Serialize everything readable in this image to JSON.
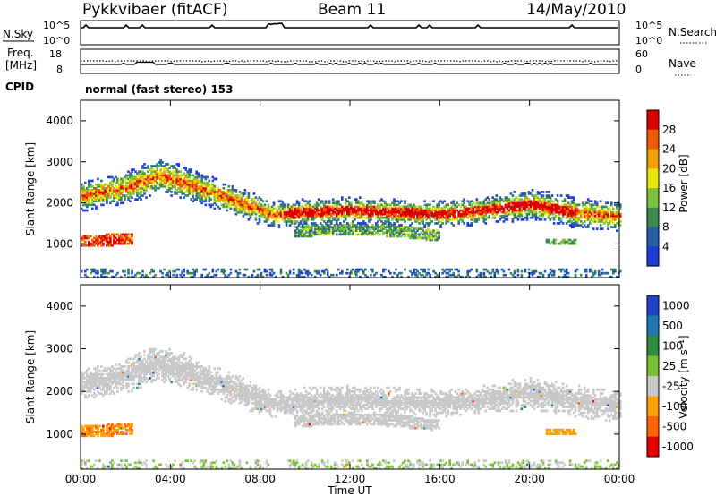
{
  "header": {
    "radar": "Pykkvibaer (fitACF)",
    "beam": "Beam 11",
    "date": "14/May/2010"
  },
  "aux": {
    "nsky_label": "N.Sky",
    "nsearch_label": "N.Search",
    "freq_label_1": "Freq.",
    "freq_label_2": "[MHz]",
    "nave_label": "Nave",
    "cpid_label": "CPID",
    "cpid_text": "normal (fast stereo) 153",
    "noise_ticks": [
      "10^5",
      "10^0"
    ],
    "noise_ticks_right": [
      "10^5",
      "10^0"
    ],
    "freq_ticks": [
      "18",
      "8"
    ],
    "nave_ticks": [
      "60",
      "0"
    ]
  },
  "colors": {
    "power": [
      "#1e3cdc",
      "#2860a8",
      "#3c8a50",
      "#7cc040",
      "#e6e600",
      "#f0a000",
      "#f05a00",
      "#dc0000"
    ],
    "velocity": [
      "#2044c8",
      "#1e78b4",
      "#2e8c3a",
      "#78c030",
      "#c8c8c8",
      "#ffa000",
      "#ff6400",
      "#e60000"
    ]
  },
  "chart_data": [
    {
      "type": "heatmap",
      "title": "Power",
      "ylabel": "Slant Range [km]",
      "xlabel": "Time UT",
      "x_ticks": [
        "00:00",
        "04:00",
        "08:00",
        "12:00",
        "16:00",
        "20:00",
        "00:00"
      ],
      "y_ticks": [
        "1000",
        "2000",
        "3000",
        "4000"
      ],
      "ylim": [
        180,
        4500
      ],
      "xlim_hours": [
        0,
        24
      ],
      "colorbar_label": "Power [dB]",
      "colorbar_ticks": [
        "4",
        "8",
        "12",
        "16",
        "20",
        "24",
        "28"
      ],
      "colorbar_range": [
        0,
        30
      ],
      "echo_bands_km": [
        {
          "name": "main band center",
          "points": [
            [
              0,
              2150
            ],
            [
              2,
              2350
            ],
            [
              3.5,
              2650
            ],
            [
              5,
              2400
            ],
            [
              7,
              2000
            ],
            [
              8.5,
              1700
            ],
            [
              10,
              1750
            ],
            [
              12,
              1800
            ],
            [
              14,
              1750
            ],
            [
              16,
              1700
            ],
            [
              18,
              1800
            ],
            [
              20,
              1950
            ],
            [
              22,
              1750
            ],
            [
              24,
              1650
            ]
          ]
        },
        {
          "name": "lower band",
          "points": [
            [
              0,
              1050
            ],
            [
              2,
              1100
            ],
            [
              12,
              1350
            ],
            [
              14,
              1300
            ],
            [
              16,
              1180
            ]
          ]
        }
      ]
    },
    {
      "type": "heatmap",
      "title": "Velocity",
      "ylabel": "Slant Range [km]",
      "xlabel": "Time UT",
      "x_ticks": [
        "00:00",
        "04:00",
        "08:00",
        "12:00",
        "16:00",
        "20:00",
        "00:00"
      ],
      "y_ticks": [
        "1000",
        "2000",
        "3000",
        "4000"
      ],
      "ylim": [
        180,
        4500
      ],
      "xlim_hours": [
        0,
        24
      ],
      "colorbar_label": "Velocity [m s⁻¹]",
      "colorbar_ticks": [
        "1000",
        "500",
        "100",
        "25",
        "-25",
        "-100",
        "-500",
        "-1000"
      ]
    }
  ]
}
